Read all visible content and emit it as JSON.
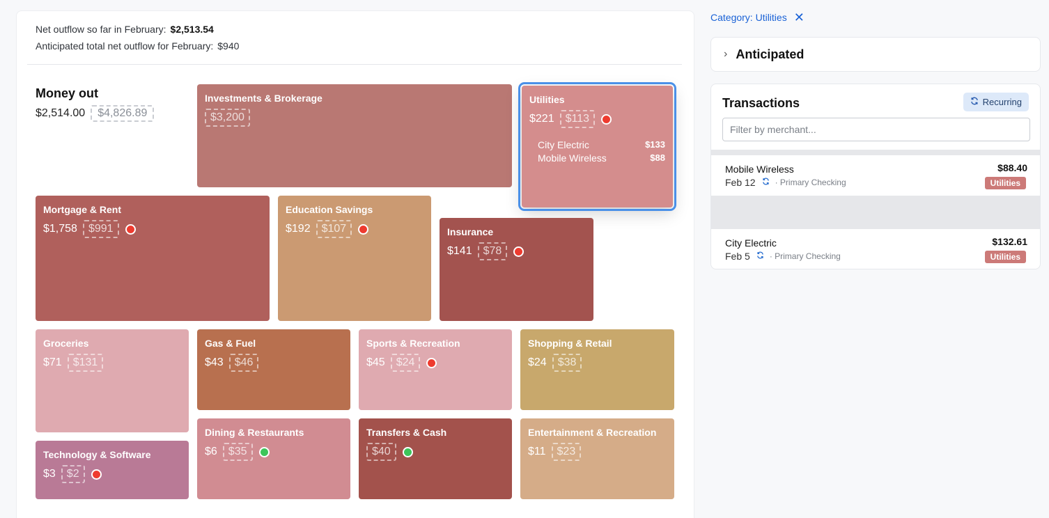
{
  "summary": {
    "net_label": "Net outflow so far in February:",
    "net_value": "$2,513.54",
    "anticipated_label": "Anticipated total net outflow for February:",
    "anticipated_value": "$940"
  },
  "money_out": {
    "title": "Money out",
    "actual": "$2,514.00",
    "anticipated": "$4,826.89"
  },
  "tiles": {
    "investments": {
      "name": "Investments & Brokerage",
      "actual": "",
      "anticipated": "$3,200",
      "color": "#b97873"
    },
    "utilities": {
      "name": "Utilities",
      "actual": "$221",
      "anticipated": "$113",
      "color": "#d48d8d",
      "merchants": [
        {
          "name": "City Electric",
          "amount": "$133"
        },
        {
          "name": "Mobile Wireless",
          "amount": "$88"
        }
      ]
    },
    "mortgage": {
      "name": "Mortgage & Rent",
      "actual": "$1,758",
      "anticipated": "$991",
      "color": "#b0605c"
    },
    "education": {
      "name": "Education Savings",
      "actual": "$192",
      "anticipated": "$107",
      "color": "#cb9a72"
    },
    "insurance": {
      "name": "Insurance",
      "actual": "$141",
      "anticipated": "$78",
      "color": "#a3534f"
    },
    "groceries": {
      "name": "Groceries",
      "actual": "$71",
      "anticipated": "$131",
      "color": "#dfaab0"
    },
    "gas": {
      "name": "Gas & Fuel",
      "actual": "$43",
      "anticipated": "$46",
      "color": "#b8704f"
    },
    "sports": {
      "name": "Sports & Recreation",
      "actual": "$45",
      "anticipated": "$24",
      "color": "#dfaab0"
    },
    "shopping": {
      "name": "Shopping & Retail",
      "actual": "$24",
      "anticipated": "$38",
      "color": "#c8a86c"
    },
    "technology": {
      "name": "Technology & Software",
      "actual": "$3",
      "anticipated": "$2",
      "color": "#b97a96"
    },
    "dining": {
      "name": "Dining & Restaurants",
      "actual": "$6",
      "anticipated": "$35",
      "color": "#d18c92"
    },
    "transfers": {
      "name": "Transfers & Cash",
      "actual": "",
      "anticipated": "$40",
      "color": "#a3524c"
    },
    "entertainment": {
      "name": "Entertainment & Recreation",
      "actual": "$11",
      "anticipated": "$23",
      "color": "#d5ac88"
    }
  },
  "filter": {
    "label": "Category: Utilities",
    "close": "✕"
  },
  "anticipated_section": {
    "label": "Anticipated"
  },
  "transactions": {
    "title": "Transactions",
    "recurring_label": "Recurring",
    "search_placeholder": "Filter by merchant...",
    "items": [
      {
        "merchant": "Mobile Wireless",
        "date": "Feb 12",
        "account": "· Primary Checking",
        "amount": "$88.40",
        "category": "Utilities"
      },
      {
        "merchant": "City Electric",
        "date": "Feb 5",
        "account": "· Primary Checking",
        "amount": "$132.61",
        "category": "Utilities"
      }
    ]
  }
}
